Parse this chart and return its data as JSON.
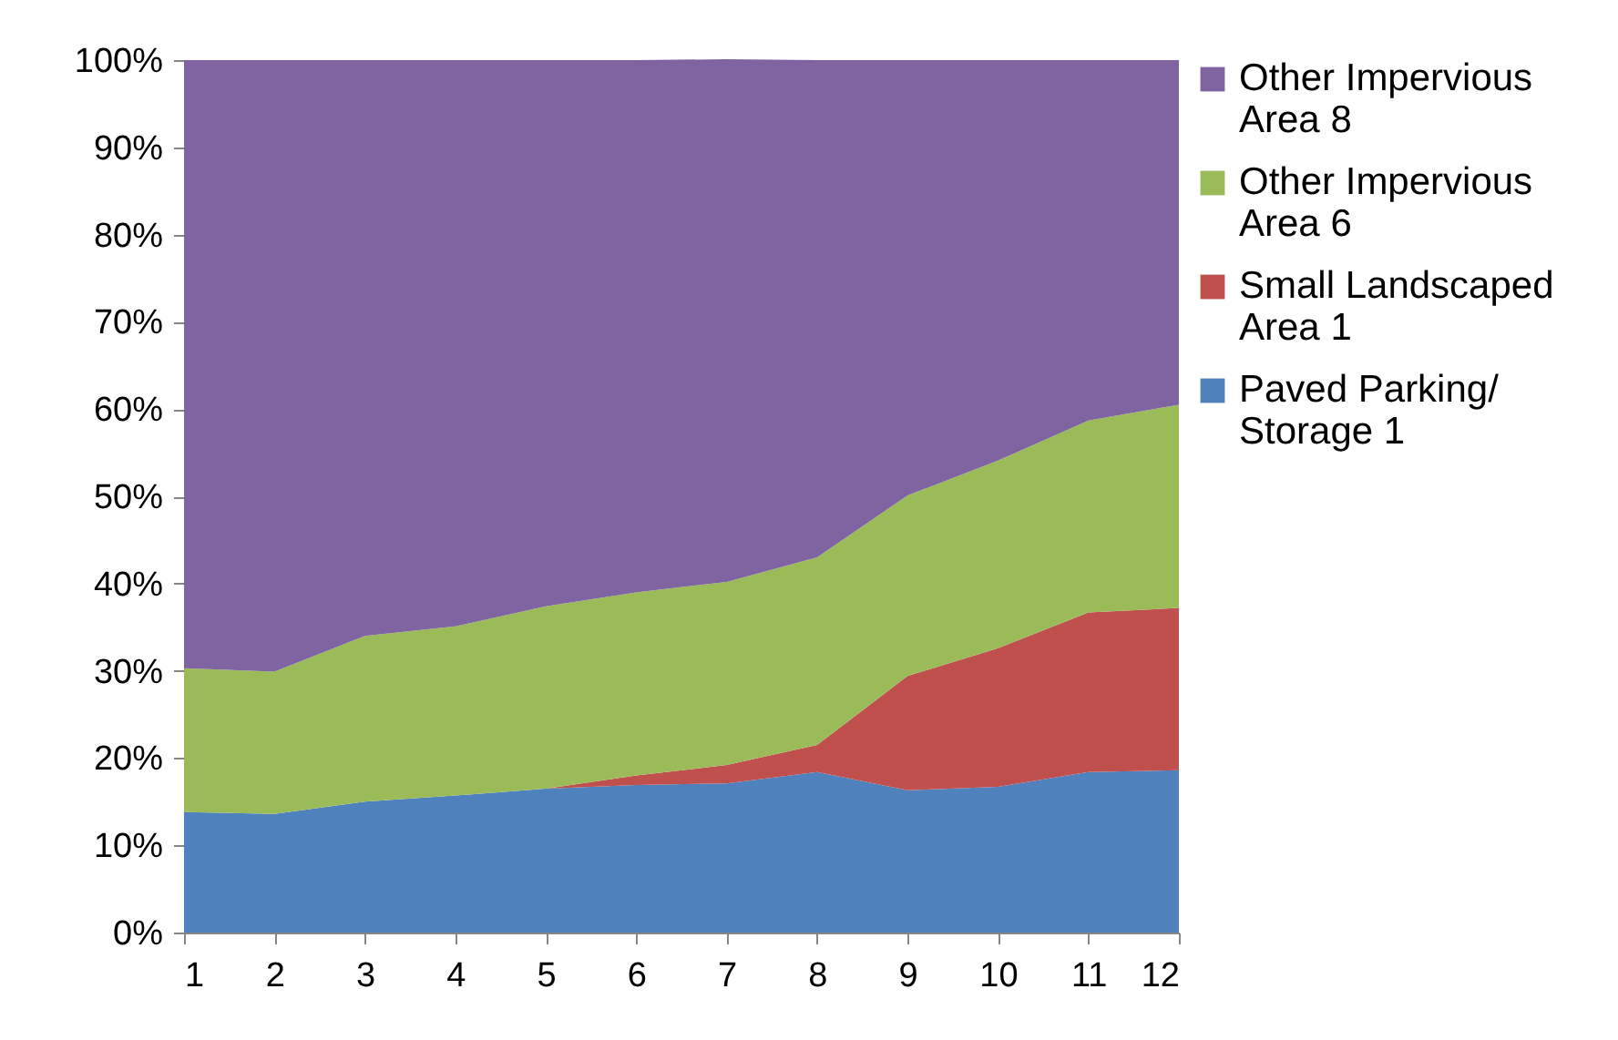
{
  "chart_data": {
    "type": "area",
    "stacked": true,
    "x": [
      1,
      2,
      3,
      4,
      5,
      6,
      7,
      8,
      9,
      10,
      11,
      12
    ],
    "xlim": [
      1,
      12
    ],
    "xticks": [
      1,
      2,
      3,
      4,
      5,
      6,
      7,
      8,
      9,
      10,
      11,
      12
    ],
    "ylim": [
      0,
      100
    ],
    "yticks": [
      {
        "value": 0,
        "label": "0%"
      },
      {
        "value": 10,
        "label": "10%"
      },
      {
        "value": 20,
        "label": "20%"
      },
      {
        "value": 30,
        "label": "30%"
      },
      {
        "value": 40,
        "label": "40%"
      },
      {
        "value": 50,
        "label": "50%"
      },
      {
        "value": 60,
        "label": "60%"
      },
      {
        "value": 70,
        "label": "70%"
      },
      {
        "value": 80,
        "label": "80%"
      },
      {
        "value": 90,
        "label": "90%"
      },
      {
        "value": 100,
        "label": "100%"
      }
    ],
    "grid": false,
    "legend": "right",
    "series": [
      {
        "name": "Paved Parking/ Storage 1",
        "color": "#4f81bd",
        "values": [
          13.8,
          13.6,
          15.0,
          15.7,
          16.5,
          16.9,
          17.1,
          18.4,
          16.3,
          16.7,
          18.4,
          18.6
        ]
      },
      {
        "name": "Small Landscaped Area 1",
        "color": "#c0504d",
        "values": [
          0,
          0,
          0,
          0,
          0,
          1.1,
          2.1,
          3.1,
          13.1,
          15.9,
          18.3,
          18.6
        ]
      },
      {
        "name": "Other Impervious Area 6",
        "color": "#9bbb59",
        "values": [
          16.5,
          16.3,
          19.0,
          19.4,
          20.9,
          21.0,
          21.0,
          21.5,
          20.7,
          21.5,
          22.0,
          23.3
        ]
      },
      {
        "name": "Other Impervious Area 8",
        "color": "#8064a2",
        "values": [
          69.7,
          70.1,
          66.0,
          64.9,
          62.6,
          61.0,
          59.9,
          57.0,
          49.9,
          45.9,
          41.3,
          39.5
        ]
      }
    ]
  }
}
